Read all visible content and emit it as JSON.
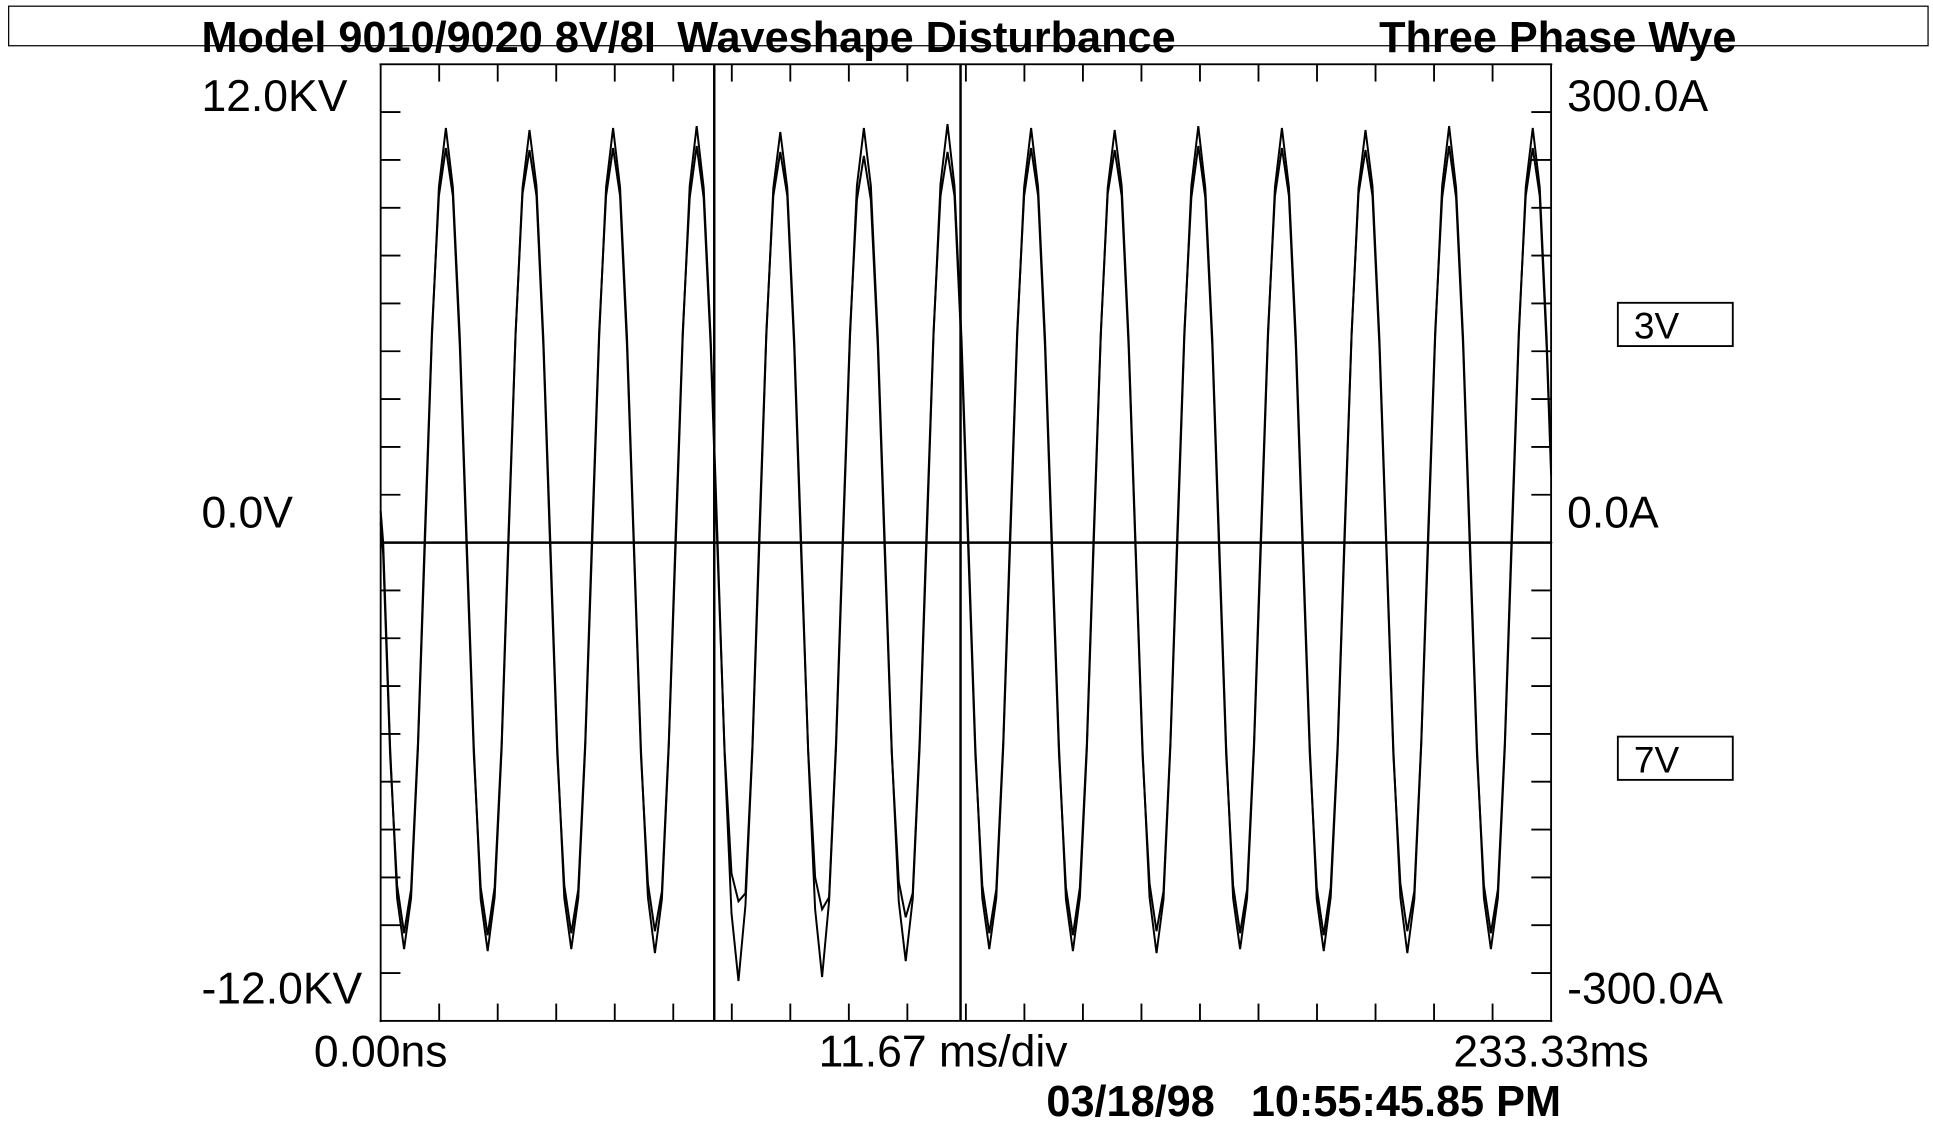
{
  "chart_data": {
    "type": "line",
    "header_left": "Model 9010/9020 8V/8I",
    "title": "Waveshape Disturbance",
    "header_right": "Three Phase Wye",
    "xlabel": "11.67 ms/div",
    "timestamp": "03/18/98   10:55:45.85 PM",
    "xlim": [
      0,
      233.33
    ],
    "xticks": [
      {
        "value": 0,
        "label": "0.00ns"
      },
      {
        "value": 233.33,
        "label": "233.33ms"
      }
    ],
    "ylim": [
      -12000,
      12000
    ],
    "yticks": [
      {
        "value": 12000,
        "label": "12.0KV"
      },
      {
        "value": 0,
        "label": "0.0V"
      },
      {
        "value": -12000,
        "label": "-12.0KV"
      }
    ],
    "y2lim": [
      -300,
      300
    ],
    "y2ticks": [
      {
        "value": 300,
        "label": "300.0A"
      },
      {
        "value": 0,
        "label": "0.0A"
      },
      {
        "value": -300,
        "label": "-300.0A"
      }
    ],
    "cursors": [
      66.5,
      115.6
    ],
    "x": [
      0,
      0.5,
      1.89,
      3.28,
      4.67,
      6.06,
      7.44,
      8.83,
      10.22,
      11.61,
      13.0,
      14.39,
      15.78,
      17.17,
      18.56,
      19.94,
      21.33,
      22.72,
      24.11,
      25.5,
      26.89,
      28.28,
      29.67,
      31.06,
      32.44,
      33.83,
      35.22,
      36.61,
      38.0,
      39.39,
      40.78,
      42.17,
      43.56,
      44.94,
      46.33,
      47.72,
      49.11,
      50.5,
      51.89,
      53.28,
      54.67,
      56.06,
      57.44,
      58.83,
      60.22,
      61.61,
      63.0,
      64.39,
      65.78,
      67.17,
      68.56,
      69.94,
      71.33,
      72.72,
      74.11,
      75.5,
      76.89,
      78.28,
      79.67,
      81.06,
      82.44,
      83.83,
      85.22,
      86.61,
      88.0,
      89.39,
      90.78,
      92.17,
      93.56,
      94.94,
      96.33,
      97.72,
      99.11,
      100.5,
      101.89,
      103.28,
      104.67,
      106.06,
      107.44,
      108.83,
      110.22,
      111.61,
      113.0,
      114.39,
      115.78,
      117.17,
      118.56,
      119.94,
      121.33,
      122.72,
      124.11,
      125.5,
      126.89,
      128.28,
      129.67,
      131.06,
      132.44,
      133.83,
      135.22,
      136.61,
      138.0,
      139.39,
      140.78,
      142.17,
      143.56,
      144.94,
      146.33,
      147.72,
      149.11,
      150.5,
      151.89,
      153.28,
      154.67,
      156.06,
      157.44,
      158.83,
      160.22,
      161.61,
      163.0,
      164.39,
      165.78,
      167.17,
      168.56,
      169.94,
      171.33,
      172.72,
      174.11,
      175.5,
      176.89,
      178.28,
      179.67,
      181.06,
      182.44,
      183.83,
      185.22,
      186.61,
      188.0,
      189.39,
      190.78,
      192.17,
      193.56,
      194.94,
      196.33,
      197.72,
      199.11,
      200.5,
      201.89,
      203.28,
      204.67,
      206.06,
      207.44,
      208.83,
      210.22,
      211.61,
      213.0,
      214.39,
      215.78,
      217.17,
      218.56,
      219.94,
      221.33,
      222.72,
      224.11,
      225.5,
      226.89,
      228.28,
      229.67,
      231.06,
      232.44,
      233.33
    ],
    "series": [
      {
        "name": "3V",
        "color": "#000000",
        "values": [
          800,
          0,
          -5150,
          -8920,
          -10200,
          -8920,
          -5150,
          0,
          5150,
          8920,
          10400,
          8920,
          5150,
          0,
          -5100,
          -8950,
          -10250,
          -8900,
          -5200,
          50,
          5200,
          8900,
          10350,
          8950,
          5100,
          0,
          -5150,
          -8920,
          -10200,
          -8920,
          -5150,
          0,
          5150,
          8920,
          10400,
          8920,
          5150,
          -50,
          -5200,
          -8900,
          -10300,
          -8950,
          -5100,
          0,
          5150,
          8950,
          10450,
          8900,
          5150,
          0,
          -5300,
          -9300,
          -11000,
          -9100,
          -5200,
          0,
          5200,
          8900,
          10300,
          8900,
          5100,
          0,
          -5250,
          -9200,
          -10900,
          -9000,
          -5150,
          50,
          5150,
          8950,
          10400,
          8950,
          5150,
          0,
          -5200,
          -9000,
          -10500,
          -8950,
          -5150,
          0,
          5200,
          9000,
          10500,
          8950,
          5150,
          0,
          -5150,
          -8920,
          -10200,
          -8920,
          -5150,
          0,
          5150,
          8920,
          10400,
          8920,
          5150,
          0,
          -5100,
          -8950,
          -10250,
          -8900,
          -5200,
          50,
          5200,
          8900,
          10350,
          8950,
          5100,
          -50,
          -5200,
          -8900,
          -10300,
          -8950,
          -5100,
          0,
          5150,
          8950,
          10450,
          8900,
          5150,
          0,
          -5150,
          -8920,
          -10200,
          -8920,
          -5150,
          0,
          5150,
          8920,
          10400,
          8920,
          5150,
          0,
          -5100,
          -8950,
          -10250,
          -8900,
          -5200,
          50,
          5200,
          8900,
          10350,
          8950,
          5100,
          -50,
          -5200,
          -8900,
          -10300,
          -8950,
          -5100,
          0,
          5150,
          8950,
          10450,
          8900,
          5150,
          0,
          -5150,
          -8920,
          -10200,
          -8920,
          -5150,
          0,
          5150,
          8920,
          10400,
          8920,
          5150,
          1900
        ]
      },
      {
        "name": "7V",
        "color": "#000000",
        "values": [
          500,
          -300,
          -5350,
          -8600,
          -9800,
          -8700,
          -5000,
          300,
          5300,
          8700,
          9900,
          8700,
          4900,
          -300,
          -5300,
          -8650,
          -9850,
          -8650,
          -5050,
          300,
          5250,
          8750,
          9850,
          8700,
          4900,
          -300,
          -5350,
          -8600,
          -9800,
          -8700,
          -5000,
          300,
          5300,
          8700,
          9900,
          8700,
          4900,
          -250,
          -5350,
          -8550,
          -9750,
          -8750,
          -5000,
          300,
          5300,
          8650,
          9950,
          8650,
          4950,
          -300,
          -5200,
          -8300,
          -9000,
          -8800,
          -5100,
          300,
          5300,
          8700,
          9800,
          8700,
          4900,
          -300,
          -5200,
          -8400,
          -9200,
          -8900,
          -5000,
          300,
          5300,
          8600,
          9700,
          8600,
          4900,
          -300,
          -5300,
          -8500,
          -9400,
          -8800,
          -5000,
          300,
          5300,
          8700,
          9800,
          8700,
          4900,
          -300,
          -5350,
          -8600,
          -9800,
          -8700,
          -5000,
          300,
          5300,
          8700,
          9900,
          8700,
          4900,
          -300,
          -5300,
          -8650,
          -9850,
          -8650,
          -5050,
          300,
          5250,
          8750,
          9850,
          8700,
          4900,
          -250,
          -5350,
          -8550,
          -9750,
          -8750,
          -5000,
          300,
          5300,
          8650,
          9950,
          8650,
          4950,
          -300,
          -5350,
          -8600,
          -9800,
          -8700,
          -5000,
          300,
          5300,
          8700,
          9900,
          8700,
          4900,
          -300,
          -5300,
          -8650,
          -9850,
          -8650,
          -5050,
          300,
          5250,
          8750,
          9850,
          8700,
          4900,
          -250,
          -5350,
          -8550,
          -9750,
          -8750,
          -5000,
          300,
          5300,
          8650,
          9950,
          8650,
          4950,
          -300,
          -5350,
          -8600,
          -9800,
          -8700,
          -5000,
          300,
          5300,
          8700,
          9900,
          8700,
          4900,
          1700
        ]
      }
    ]
  }
}
